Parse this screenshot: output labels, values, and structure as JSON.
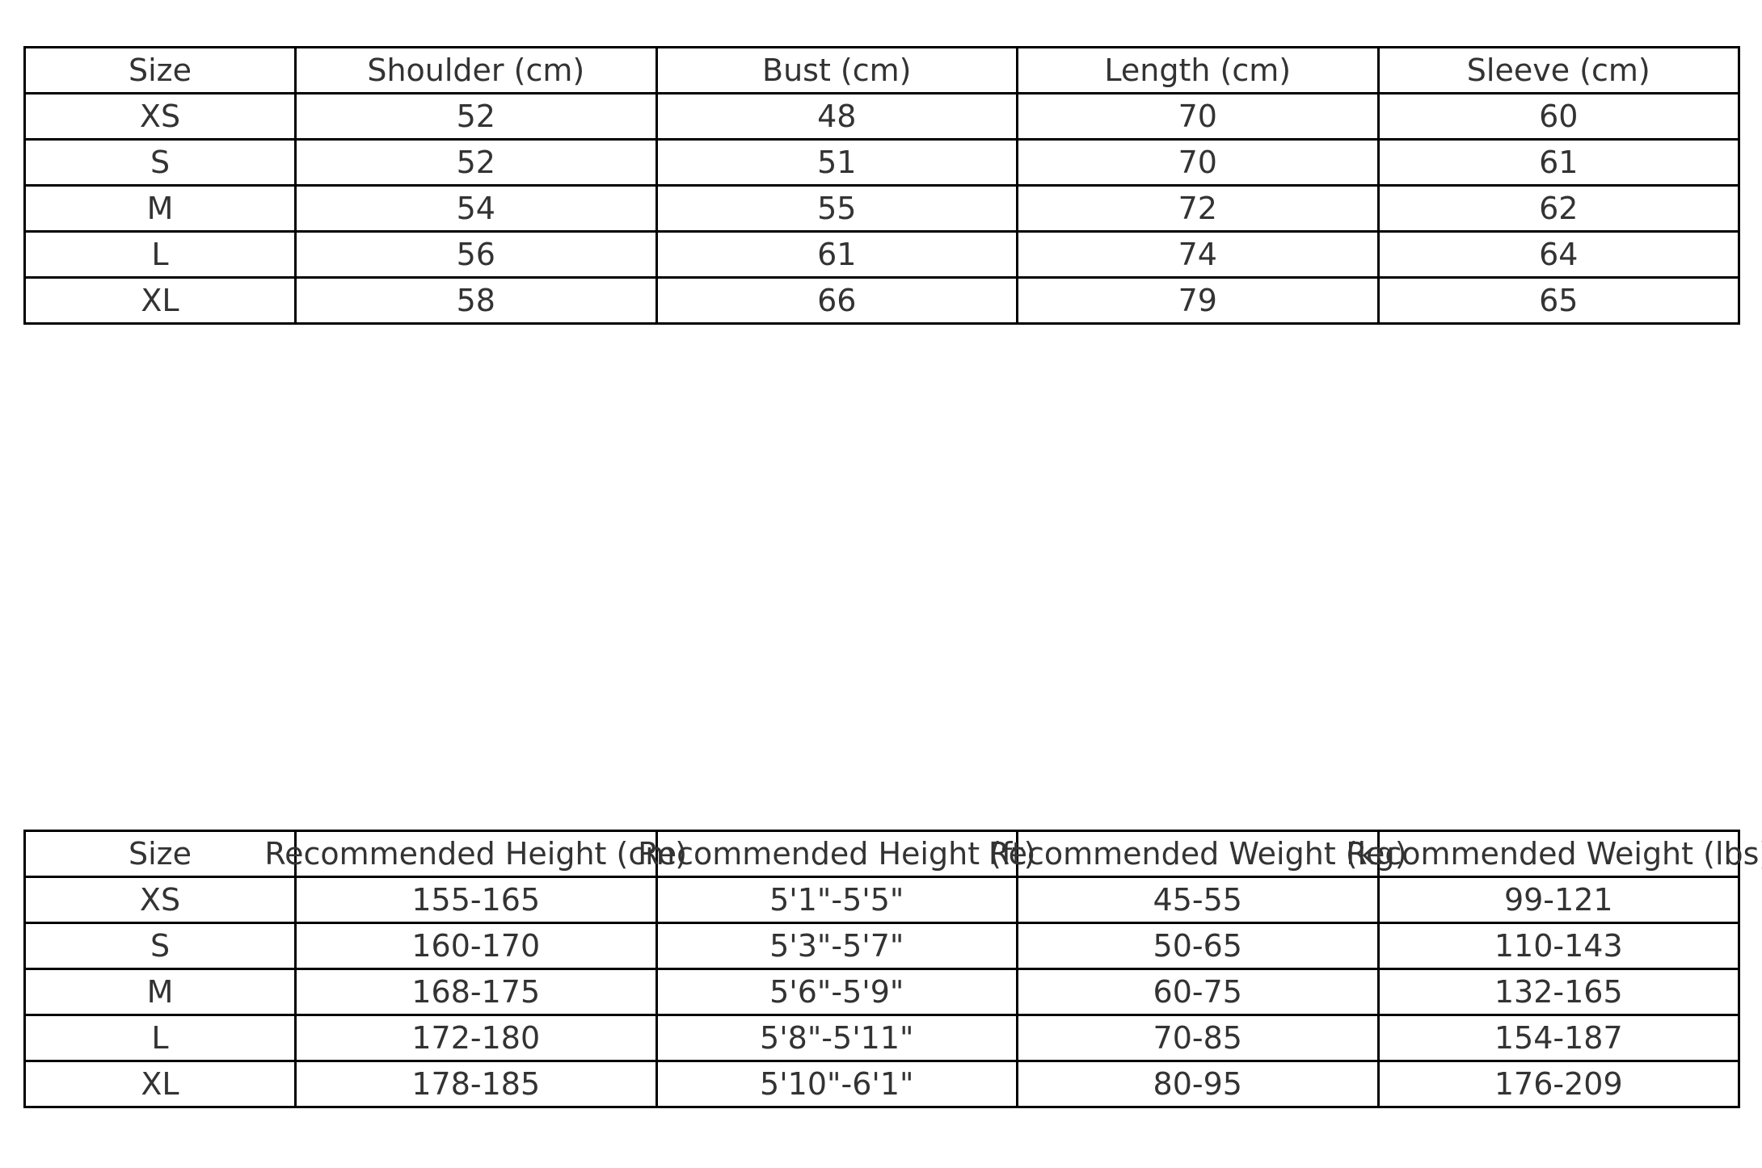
{
  "measurements_table": {
    "headers": [
      "Size",
      "Shoulder (cm)",
      "Bust (cm)",
      "Length (cm)",
      "Sleeve (cm)"
    ],
    "rows": [
      [
        "XS",
        "52",
        "48",
        "70",
        "60"
      ],
      [
        "S",
        "52",
        "51",
        "70",
        "61"
      ],
      [
        "M",
        "54",
        "55",
        "72",
        "62"
      ],
      [
        "L",
        "56",
        "61",
        "74",
        "64"
      ],
      [
        "XL",
        "58",
        "66",
        "79",
        "65"
      ]
    ]
  },
  "recommendation_table": {
    "headers": [
      "Size",
      "Recommended Height (cm)",
      "Recommended Height (ft)",
      "Recommended Weight (kg)",
      "Recommended Weight (lbs)"
    ],
    "rows": [
      [
        "XS",
        "155-165",
        "5'1\"-5'5\"",
        "45-55",
        "99-121"
      ],
      [
        "S",
        "160-170",
        "5'3\"-5'7\"",
        "50-65",
        "110-143"
      ],
      [
        "M",
        "168-175",
        "5'6\"-5'9\"",
        "60-75",
        "132-165"
      ],
      [
        "L",
        "172-180",
        "5'8\"-5'11\"",
        "70-85",
        "154-187"
      ],
      [
        "XL",
        "178-185",
        "5'10\"-6'1\"",
        "80-95",
        "176-209"
      ]
    ]
  }
}
